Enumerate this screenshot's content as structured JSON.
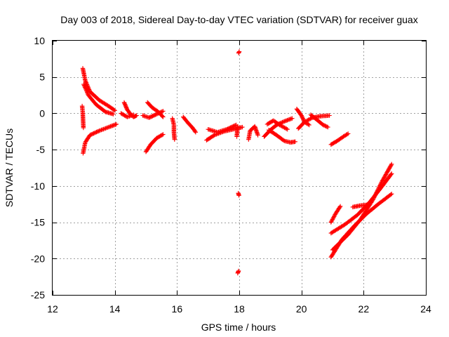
{
  "chart_data": {
    "type": "scatter",
    "title": "Day 003 of 2018, Sidereal Day-to-day VTEC variation (SDTVAR) for receiver guax",
    "xlabel": "GPS time / hours",
    "ylabel": "SDTVAR / TECUs",
    "xlim": [
      12,
      24
    ],
    "ylim": [
      -25,
      10
    ],
    "xticks": [
      "12",
      "14",
      "16",
      "18",
      "20",
      "22",
      "24"
    ],
    "yticks": [
      "10",
      "5",
      "0",
      "-5",
      "-10",
      "-15",
      "-20",
      "-25"
    ],
    "grid": true,
    "marker": "+",
    "color": "#ff0000",
    "arcs": [
      {
        "name": "arc-a",
        "points": [
          [
            12.97,
            6.2
          ],
          [
            13.05,
            4.5
          ],
          [
            13.2,
            3.0
          ],
          [
            13.5,
            1.8
          ],
          [
            13.8,
            1.0
          ],
          [
            14.0,
            0.4
          ]
        ]
      },
      {
        "name": "arc-b",
        "points": [
          [
            13.0,
            4.0
          ],
          [
            13.15,
            2.5
          ],
          [
            13.4,
            1.2
          ],
          [
            13.7,
            0.2
          ],
          [
            13.95,
            -0.1
          ]
        ]
      },
      {
        "name": "arc-c",
        "points": [
          [
            12.95,
            1.0
          ],
          [
            12.97,
            0.0
          ],
          [
            12.98,
            -1.0
          ],
          [
            12.99,
            -2.0
          ]
        ]
      },
      {
        "name": "arc-d",
        "points": [
          [
            12.98,
            -5.5
          ],
          [
            13.05,
            -4.0
          ],
          [
            13.2,
            -3.0
          ],
          [
            13.5,
            -2.4
          ],
          [
            13.8,
            -1.9
          ],
          [
            14.05,
            -1.5
          ]
        ]
      },
      {
        "name": "arc-e",
        "points": [
          [
            14.3,
            1.5
          ],
          [
            14.4,
            0.5
          ],
          [
            14.5,
            -0.1
          ],
          [
            14.6,
            -0.5
          ],
          [
            14.7,
            -0.3
          ]
        ]
      },
      {
        "name": "arc-f",
        "points": [
          [
            14.2,
            0.0
          ],
          [
            14.4,
            -0.5
          ],
          [
            14.6,
            -0.2
          ]
        ]
      },
      {
        "name": "arc-g",
        "points": [
          [
            14.9,
            -0.3
          ],
          [
            15.1,
            -0.6
          ],
          [
            15.3,
            -0.2
          ],
          [
            15.55,
            0.3
          ]
        ]
      },
      {
        "name": "arc-h",
        "points": [
          [
            15.05,
            1.5
          ],
          [
            15.2,
            0.8
          ],
          [
            15.4,
            0.2
          ],
          [
            15.55,
            -0.5
          ]
        ]
      },
      {
        "name": "arc-i",
        "points": [
          [
            15.0,
            -5.3
          ],
          [
            15.15,
            -4.3
          ],
          [
            15.35,
            -3.4
          ],
          [
            15.55,
            -2.9
          ]
        ]
      },
      {
        "name": "arc-j",
        "points": [
          [
            15.85,
            -0.7
          ],
          [
            15.9,
            -1.6
          ],
          [
            15.9,
            -2.6
          ],
          [
            15.92,
            -3.6
          ]
        ]
      },
      {
        "name": "arc-k",
        "points": [
          [
            16.2,
            -0.5
          ],
          [
            16.35,
            -1.3
          ],
          [
            16.5,
            -2.0
          ],
          [
            16.6,
            -2.6
          ]
        ]
      },
      {
        "name": "arc-l",
        "points": [
          [
            16.95,
            -3.7
          ],
          [
            17.2,
            -3.0
          ],
          [
            17.5,
            -2.5
          ],
          [
            17.8,
            -2.2
          ],
          [
            18.1,
            -1.9
          ]
        ]
      },
      {
        "name": "arc-m",
        "points": [
          [
            17.0,
            -2.2
          ],
          [
            17.3,
            -2.6
          ],
          [
            17.6,
            -2.2
          ],
          [
            17.9,
            -1.6
          ]
        ]
      },
      {
        "name": "arc-n",
        "points": [
          [
            18.0,
            8.5
          ],
          [
            17.98,
            8.3
          ]
        ]
      },
      {
        "name": "arc-o",
        "points": [
          [
            17.97,
            -11.0
          ],
          [
            17.99,
            -11.3
          ]
        ]
      },
      {
        "name": "arc-p",
        "points": [
          [
            17.95,
            -22.0
          ],
          [
            17.98,
            -21.7
          ]
        ]
      },
      {
        "name": "arc-q",
        "points": [
          [
            17.92,
            -3.2
          ],
          [
            17.95,
            -1.8
          ]
        ]
      },
      {
        "name": "arc-r",
        "points": [
          [
            18.3,
            -3.6
          ],
          [
            18.35,
            -2.4
          ],
          [
            18.5,
            -1.8
          ],
          [
            18.6,
            -3.0
          ]
        ]
      },
      {
        "name": "arc-s",
        "points": [
          [
            18.8,
            -3.2
          ],
          [
            19.0,
            -2.3
          ],
          [
            19.2,
            -1.6
          ],
          [
            19.45,
            -1.1
          ],
          [
            19.7,
            -0.7
          ]
        ]
      },
      {
        "name": "arc-t",
        "points": [
          [
            18.9,
            -1.5
          ],
          [
            19.1,
            -1.0
          ],
          [
            19.3,
            -1.6
          ],
          [
            19.55,
            -2.2
          ]
        ]
      },
      {
        "name": "arc-u",
        "points": [
          [
            18.95,
            -2.3
          ],
          [
            19.2,
            -3.0
          ],
          [
            19.45,
            -3.8
          ],
          [
            19.65,
            -4.0
          ],
          [
            19.8,
            -3.9
          ]
        ]
      },
      {
        "name": "arc-v",
        "points": [
          [
            19.85,
            0.6
          ],
          [
            20.0,
            -0.3
          ],
          [
            20.1,
            -1.2
          ],
          [
            20.25,
            -1.6
          ]
        ]
      },
      {
        "name": "arc-w",
        "points": [
          [
            19.9,
            -2.1
          ],
          [
            20.1,
            -1.2
          ],
          [
            20.35,
            -0.6
          ],
          [
            20.6,
            -0.4
          ],
          [
            20.9,
            -0.3
          ]
        ]
      },
      {
        "name": "arc-x",
        "points": [
          [
            20.3,
            -0.2
          ],
          [
            20.5,
            -0.9
          ],
          [
            20.7,
            -1.6
          ],
          [
            20.85,
            -1.9
          ]
        ]
      },
      {
        "name": "arc-y",
        "points": [
          [
            20.95,
            -4.3
          ],
          [
            21.15,
            -3.8
          ],
          [
            21.35,
            -3.2
          ],
          [
            21.5,
            -2.8
          ]
        ]
      },
      {
        "name": "arc-z",
        "points": [
          [
            20.95,
            -19.8
          ],
          [
            21.3,
            -17.4
          ],
          [
            21.7,
            -15.5
          ],
          [
            22.1,
            -13.8
          ],
          [
            22.5,
            -12.4
          ],
          [
            22.9,
            -11.1
          ]
        ]
      },
      {
        "name": "arc-aa",
        "points": [
          [
            20.95,
            -16.5
          ],
          [
            21.4,
            -15.3
          ],
          [
            21.8,
            -14.0
          ],
          [
            22.2,
            -12.2
          ],
          [
            22.55,
            -10.3
          ],
          [
            22.9,
            -8.3
          ]
        ]
      },
      {
        "name": "arc-ab",
        "points": [
          [
            21.0,
            -18.8
          ],
          [
            21.5,
            -16.7
          ],
          [
            21.9,
            -14.6
          ],
          [
            22.3,
            -11.9
          ],
          [
            22.6,
            -9.3
          ],
          [
            22.9,
            -7.0
          ]
        ]
      },
      {
        "name": "arc-ac",
        "points": [
          [
            20.95,
            -15.0
          ],
          [
            21.1,
            -13.8
          ],
          [
            21.25,
            -12.8
          ]
        ]
      },
      {
        "name": "arc-ad",
        "points": [
          [
            21.65,
            -12.9
          ],
          [
            21.9,
            -12.7
          ],
          [
            22.1,
            -12.6
          ]
        ]
      }
    ]
  }
}
